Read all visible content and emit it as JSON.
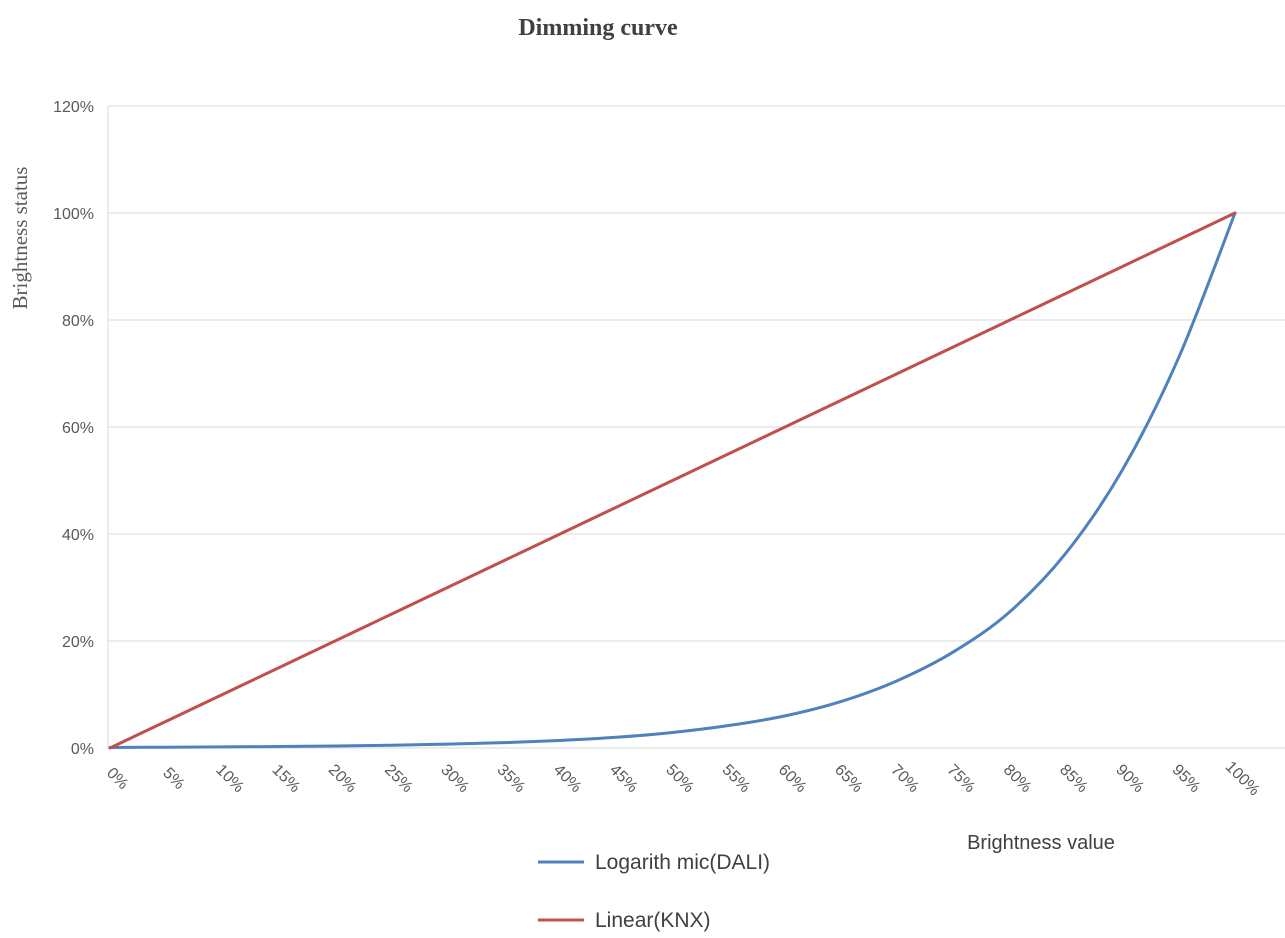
{
  "chart_data": {
    "type": "line",
    "title": "Dimming curve",
    "xlabel": "Brightness value",
    "ylabel": "Brightness status",
    "categories": [
      "0%",
      "5%",
      "10%",
      "15%",
      "20%",
      "25%",
      "30%",
      "35%",
      "40%",
      "45%",
      "50%",
      "55%",
      "60%",
      "65%",
      "70%",
      "75%",
      "80%",
      "85%",
      "90%",
      "95%",
      "100%"
    ],
    "x": [
      0,
      5,
      10,
      15,
      20,
      25,
      30,
      35,
      40,
      45,
      50,
      55,
      60,
      65,
      70,
      75,
      80,
      85,
      90,
      95,
      100
    ],
    "y_ticks": [
      "0%",
      "20%",
      "40%",
      "60%",
      "80%",
      "100%",
      "120%"
    ],
    "ylim": [
      0,
      120
    ],
    "grid": true,
    "legend_position": "bottom",
    "series": [
      {
        "name": "Logarith mic(DALI)",
        "color": "#4f81bd",
        "values": [
          0.1,
          0.15,
          0.2,
          0.28,
          0.38,
          0.52,
          0.72,
          1.0,
          1.4,
          2.0,
          2.9,
          4.2,
          6.0,
          8.7,
          12.6,
          18.0,
          25.5,
          36.5,
          52.0,
          73.0,
          100
        ]
      },
      {
        "name": "Linear(KNX)",
        "color": "#c0504d",
        "values": [
          0,
          5,
          10,
          15,
          20,
          25,
          30,
          35,
          40,
          45,
          50,
          55,
          60,
          65,
          70,
          75,
          80,
          85,
          90,
          95,
          100
        ]
      }
    ]
  }
}
